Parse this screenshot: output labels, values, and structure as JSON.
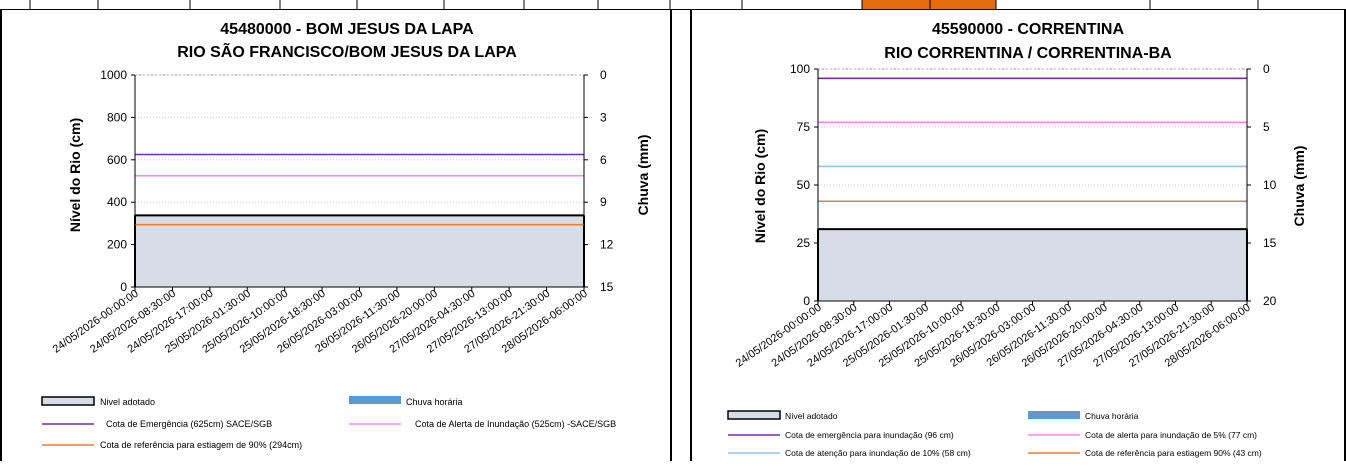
{
  "charts": [
    {
      "title_line1": "45480000 - BOM JESUS DA LAPA",
      "title_line2": "RIO SÃO FRANCISCO/BOM JESUS DA LAPA",
      "ylabel": "Nível do Rio  (cm)",
      "y2label": "Chuva (mm)",
      "yticks": [
        "0",
        "200",
        "400",
        "600",
        "800",
        "1000"
      ],
      "y2ticks": [
        "0",
        "3",
        "6",
        "9",
        "12",
        "15"
      ],
      "xticks": [
        "24/05/2026-00:00:00",
        "24/05/2026-08:30:00",
        "24/05/2026-17:00:00",
        "25/05/2026-01:30:00",
        "25/05/2026-10:00:00",
        "25/05/2026-18:30:00",
        "26/05/2026-03:00:00",
        "26/05/2026-11:30:00",
        "26/05/2026-20:00:00",
        "27/05/2026-04:30:00",
        "27/05/2026-13:00:00",
        "27/05/2026-21:30:00",
        "28/05/2026-06:00:00"
      ],
      "legend": {
        "nivel": "Nivel adotado",
        "chuva": "Chuva horária",
        "emergencia": "Cota de Emergência   (625cm) SACE/SGB",
        "alerta": "Cota de Alerta  de Inundação (525cm) -SACE/SGB",
        "referencia": "Cota de referência para  estiagem de 90% (294cm)"
      }
    },
    {
      "title_line1": "45590000 - CORRENTINA",
      "title_line2": "RIO CORRENTINA / CORRENTINA-BA",
      "ylabel": "Nível do Rio  (cm)",
      "y2label": "Chuva (mm)",
      "yticks": [
        "0",
        "25",
        "50",
        "75",
        "100"
      ],
      "y2ticks": [
        "0",
        "5",
        "10",
        "15",
        "20"
      ],
      "xticks": [
        "24/05/2026-00:00:00",
        "24/05/2026-08:30:00",
        "24/05/2026-17:00:00",
        "25/05/2026-01:30:00",
        "25/05/2026-10:00:00",
        "25/05/2026-18:30:00",
        "26/05/2026-03:00:00",
        "26/05/2026-11:30:00",
        "26/05/2026-20:00:00",
        "27/05/2026-04:30:00",
        "27/05/2026-13:00:00",
        "27/05/2026-21:30:00",
        "28/05/2026-06:00:00"
      ],
      "legend": {
        "nivel": "Nível adotado",
        "chuva": "Chuva horária",
        "emergencia": "Cota de emergência para inundação (96 cm)",
        "alerta": "Cota de alerta para inundação de 5% (77 cm)",
        "atencao": "Cota de atenção para inundação de 10% (58 cm)",
        "referencia": "Cota de referência para estiagem 90% (43 cm)"
      }
    }
  ],
  "chart_data": [
    {
      "type": "area",
      "x_range": [
        "24/05/2026-00:00:00",
        "28/05/2026-06:00:00"
      ],
      "ylim": [
        0,
        1000
      ],
      "y2lim": [
        0,
        15
      ],
      "y2_inverted": true,
      "series": [
        {
          "name": "Nivel adotado",
          "type": "area",
          "color": "#d6dde6",
          "values": [
            338,
            338,
            338,
            338,
            338,
            338,
            338,
            338,
            338,
            338,
            338,
            338,
            338
          ]
        },
        {
          "name": "Chuva horária",
          "type": "bar",
          "color": "#5b9bd5",
          "values": [
            0
          ]
        },
        {
          "name": "Cota de Emergência",
          "type": "hline",
          "color": "#7030a0",
          "value": 625
        },
        {
          "name": "Cota de Alerta",
          "type": "hline",
          "color": "#ff88ee",
          "value": 525
        },
        {
          "name": "Cota de referência",
          "type": "hline",
          "color": "#ed7d31",
          "value": 294
        }
      ],
      "grid": "dotted"
    },
    {
      "type": "area",
      "x_range": [
        "24/05/2026-00:00:00",
        "28/05/2026-06:00:00"
      ],
      "ylim": [
        0,
        100
      ],
      "y2lim": [
        0,
        20
      ],
      "y2_inverted": true,
      "series": [
        {
          "name": "Nível adotado",
          "type": "area",
          "color": "#d6dde6",
          "values": [
            31,
            31,
            31,
            31,
            31,
            31,
            31,
            31,
            31,
            31,
            31,
            31,
            31
          ]
        },
        {
          "name": "Chuva horária",
          "type": "bar",
          "color": "#5b9bd5",
          "values": [
            0
          ]
        },
        {
          "name": "Cota de emergência",
          "type": "hline",
          "color": "#7030a0",
          "value": 96
        },
        {
          "name": "Cota de alerta",
          "type": "hline",
          "color": "#ff88ee",
          "value": 77
        },
        {
          "name": "Cota de atenção",
          "type": "hline",
          "color": "#9dc3e6",
          "value": 58
        },
        {
          "name": "Cota de referência",
          "type": "hline",
          "color": "#ed7d31",
          "value": 43
        }
      ],
      "grid": "dotted"
    }
  ]
}
